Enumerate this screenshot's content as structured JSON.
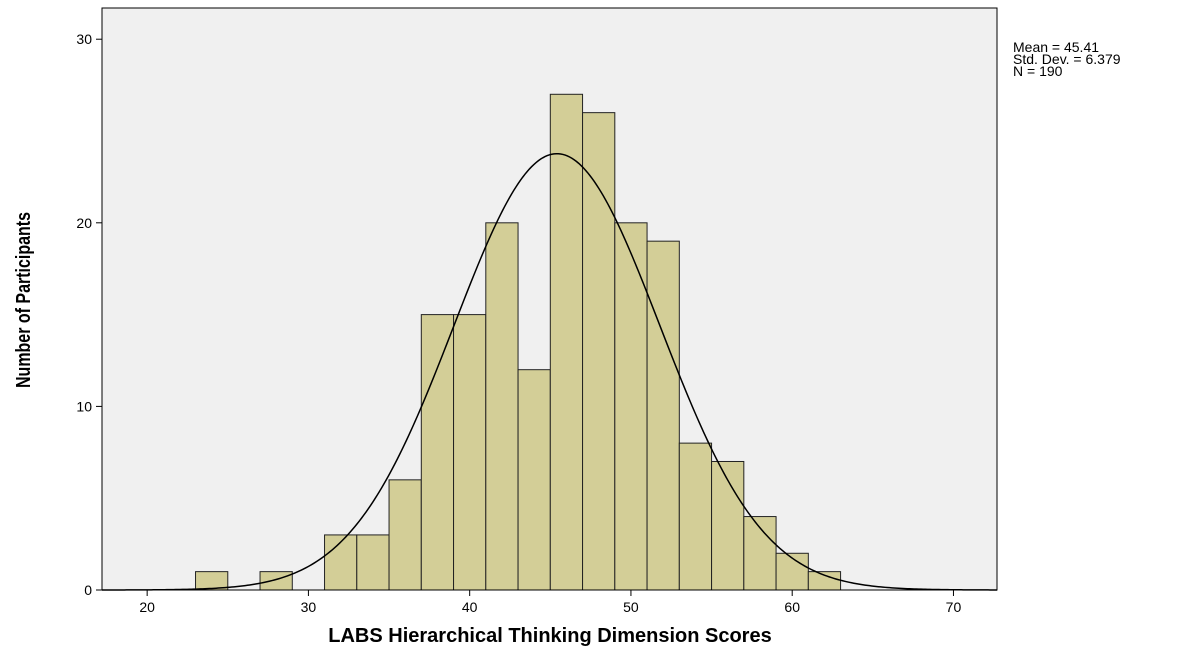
{
  "chart_data": {
    "type": "histogram",
    "xlabel": "LABS Hierarchical Thinking Dimension Scores",
    "ylabel": "Number of Participants",
    "bins": [
      23,
      25,
      27,
      29,
      31,
      33,
      35,
      37,
      39,
      41,
      43,
      45,
      47,
      49,
      51,
      53,
      55,
      57,
      59,
      61,
      63
    ],
    "values": [
      1,
      0,
      1,
      0,
      3,
      3,
      6,
      15,
      15,
      20,
      12,
      27,
      26,
      20,
      19,
      8,
      7,
      4,
      2,
      1
    ],
    "color": "#d3ce97",
    "xlim": [
      17.2,
      72.7
    ],
    "ylim": [
      0,
      31.7
    ],
    "xticks": [
      20,
      30,
      40,
      50,
      60,
      70
    ],
    "yticks": [
      0,
      10,
      20,
      30
    ],
    "normal_curve": {
      "values": [
        45.41,
        6.379,
        190
      ],
      "value_labels": [
        "Mean = 45.41",
        "Std. Dev. = 6.379",
        "N = 190"
      ]
    }
  }
}
